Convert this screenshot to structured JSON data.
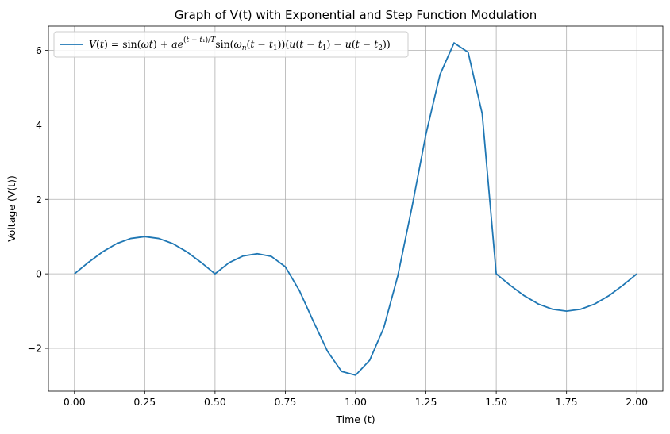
{
  "chart_data": {
    "type": "line",
    "title": "Graph of V(t) with Exponential and Step Function Modulation",
    "xlabel": "Time (t)",
    "ylabel": "Voltage (V(t))",
    "xlim": [
      -0.0925,
      2.0925
    ],
    "ylim": [
      -3.15,
      6.65
    ],
    "xticks": [
      0.0,
      0.25,
      0.5,
      0.75,
      1.0,
      1.25,
      1.5,
      1.75,
      2.0
    ],
    "xtick_labels": [
      "0.00",
      "0.25",
      "0.50",
      "0.75",
      "1.00",
      "1.25",
      "1.50",
      "1.75",
      "2.00"
    ],
    "yticks": [
      -2,
      0,
      2,
      4,
      6
    ],
    "ytick_labels": [
      "−2",
      "0",
      "2",
      "4",
      "6"
    ],
    "grid": true,
    "legend_position": "top-left",
    "series": [
      {
        "name": "V(t) = sin(ωt) + ae^{(t−t1)/T} sin(ωn(t−t1))(u(t−t1)−u(t−t2))",
        "color": "#1f77b4",
        "x": [
          0.0,
          0.05,
          0.1,
          0.15,
          0.2,
          0.25,
          0.3,
          0.35,
          0.4,
          0.45,
          0.5,
          0.55,
          0.6,
          0.65,
          0.7,
          0.75,
          0.8,
          0.85,
          0.9,
          0.95,
          1.0,
          1.05,
          1.1,
          1.15,
          1.2,
          1.25,
          1.3,
          1.35,
          1.4,
          1.45,
          1.5,
          1.55,
          1.6,
          1.65,
          1.7,
          1.75,
          1.8,
          1.85,
          1.9,
          1.95,
          2.0
        ],
        "y": [
          0.0,
          0.31,
          0.59,
          0.81,
          0.95,
          1.0,
          0.95,
          0.81,
          0.59,
          0.31,
          0.0,
          0.3,
          0.48,
          0.54,
          0.47,
          0.19,
          -0.45,
          -1.28,
          -2.08,
          -2.62,
          -2.72,
          -2.32,
          -1.45,
          -0.05,
          1.78,
          3.75,
          5.35,
          6.2,
          5.95,
          4.3,
          0.0,
          -0.31,
          -0.59,
          -0.81,
          -0.95,
          -1.0,
          -0.95,
          -0.81,
          -0.59,
          -0.31,
          0.0
        ]
      }
    ]
  }
}
